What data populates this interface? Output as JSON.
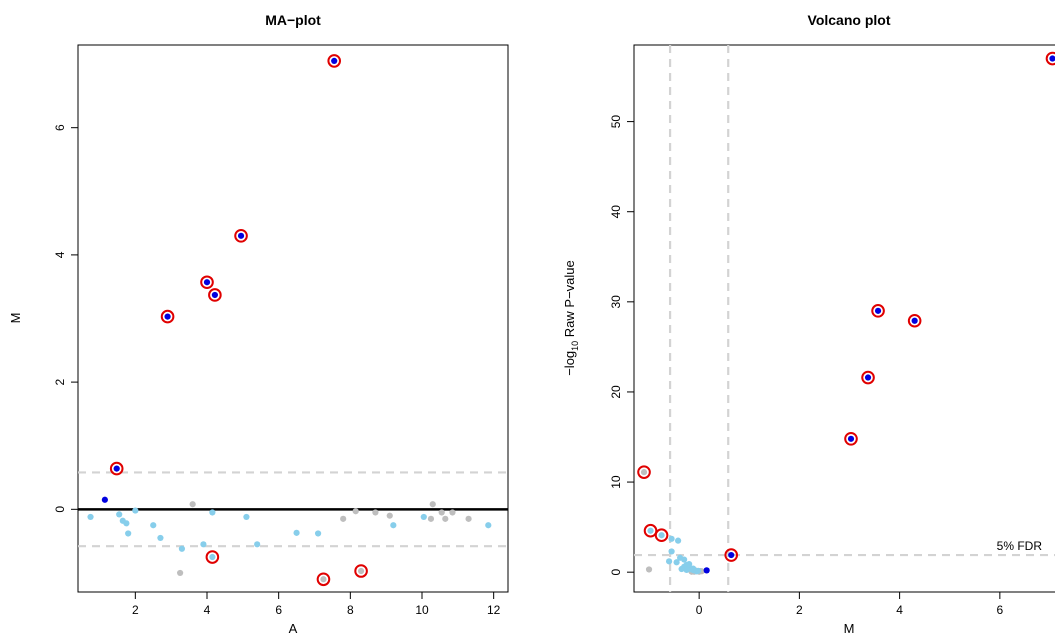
{
  "chart_data": [
    {
      "type": "scatter",
      "title": "MA−plot",
      "xlabel": "A",
      "ylabel": "M",
      "xlim": [
        0.4,
        12.4
      ],
      "ylim": [
        -1.3,
        7.3
      ],
      "xticks": [
        "2",
        "4",
        "6",
        "8",
        "10",
        "12"
      ],
      "yticks": [
        "0",
        "2",
        "4",
        "6"
      ],
      "reference_lines": {
        "solid_h": 0,
        "dashed_h": [
          0.58,
          -0.58
        ]
      },
      "colors": {
        "significant": "#0000e0",
        "highlight_ring": "#e00000",
        "light": "#87ceeb",
        "grey": "#bebebe"
      },
      "series": [
        {
          "group": "significant_circled",
          "points": [
            [
              7.55,
              7.05
            ],
            [
              4.95,
              4.3
            ],
            [
              4.0,
              3.57
            ],
            [
              4.22,
              3.37
            ],
            [
              2.9,
              3.03
            ],
            [
              1.48,
              0.64
            ]
          ]
        },
        {
          "group": "significant",
          "points": [
            [
              1.15,
              0.15
            ]
          ]
        },
        {
          "group": "light_circled",
          "points": [
            [
              4.15,
              -0.75
            ]
          ]
        },
        {
          "group": "grey_circled",
          "points": [
            [
              7.25,
              -1.1
            ],
            [
              8.3,
              -0.97
            ]
          ]
        },
        {
          "group": "light",
          "points": [
            [
              0.75,
              -0.12
            ],
            [
              1.55,
              -0.08
            ],
            [
              1.65,
              -0.18
            ],
            [
              1.75,
              -0.22
            ],
            [
              1.8,
              -0.38
            ],
            [
              2.0,
              -0.02
            ],
            [
              2.5,
              -0.25
            ],
            [
              2.7,
              -0.45
            ],
            [
              3.3,
              -0.62
            ],
            [
              3.9,
              -0.55
            ],
            [
              4.15,
              -0.05
            ],
            [
              5.1,
              -0.12
            ],
            [
              5.4,
              -0.55
            ],
            [
              6.5,
              -0.37
            ],
            [
              7.1,
              -0.38
            ],
            [
              9.2,
              -0.25
            ],
            [
              10.05,
              -0.12
            ],
            [
              11.85,
              -0.25
            ]
          ]
        },
        {
          "group": "grey",
          "points": [
            [
              3.25,
              -1.0
            ],
            [
              3.6,
              0.08
            ],
            [
              7.8,
              -0.15
            ],
            [
              8.15,
              -0.03
            ],
            [
              8.7,
              -0.05
            ],
            [
              9.1,
              -0.1
            ],
            [
              10.25,
              -0.15
            ],
            [
              10.3,
              0.08
            ],
            [
              10.55,
              -0.05
            ],
            [
              10.65,
              -0.15
            ],
            [
              10.85,
              -0.05
            ],
            [
              11.3,
              -0.15
            ]
          ]
        }
      ]
    },
    {
      "type": "scatter",
      "title": "Volcano plot",
      "xlabel": "M",
      "ylabel_prefix": "−log",
      "ylabel_sub": "10",
      "ylabel_rest": " Raw P−value",
      "annotation": "5% FDR",
      "xlim": [
        -1.3,
        7.3
      ],
      "ylim": [
        -2.2,
        58.5
      ],
      "xticks": [
        "0",
        "2",
        "4",
        "6"
      ],
      "yticks": [
        "0",
        "10",
        "20",
        "30",
        "40",
        "50"
      ],
      "reference_lines": {
        "dashed_v": [
          -0.58,
          0.58
        ],
        "dashed_h": 1.9
      },
      "series": [
        {
          "group": "significant_circled",
          "points": [
            [
              7.05,
              57.0
            ],
            [
              3.57,
              29.0
            ],
            [
              4.3,
              27.9
            ],
            [
              3.37,
              21.6
            ],
            [
              3.03,
              14.8
            ],
            [
              0.64,
              1.9
            ]
          ]
        },
        {
          "group": "significant",
          "points": [
            [
              0.15,
              0.2
            ]
          ]
        },
        {
          "group": "light_circled",
          "points": [
            [
              -0.75,
              4.1
            ],
            [
              -0.97,
              4.6
            ]
          ]
        },
        {
          "group": "grey_circled",
          "points": [
            [
              -1.1,
              11.1
            ]
          ]
        },
        {
          "group": "light",
          "points": [
            [
              -0.55,
              3.7
            ],
            [
              -0.42,
              3.5
            ],
            [
              -0.55,
              2.3
            ],
            [
              -0.6,
              1.2
            ],
            [
              -0.45,
              1.1
            ],
            [
              -0.38,
              1.6
            ],
            [
              -0.3,
              1.4
            ],
            [
              -0.25,
              0.8
            ],
            [
              -0.2,
              0.5
            ],
            [
              -0.15,
              0.3
            ],
            [
              -0.1,
              0.2
            ],
            [
              -0.05,
              0.1
            ],
            [
              -0.3,
              0.6
            ],
            [
              -0.2,
              0.9
            ],
            [
              -0.12,
              0.4
            ],
            [
              -0.02,
              0.15
            ],
            [
              -0.25,
              0.25
            ],
            [
              -0.35,
              0.35
            ]
          ]
        },
        {
          "group": "grey",
          "points": [
            [
              -1.0,
              0.3
            ],
            [
              -0.1,
              0.05
            ],
            [
              -0.05,
              0.1
            ],
            [
              0.0,
              0.05
            ],
            [
              -0.15,
              0.15
            ],
            [
              0.05,
              0.1
            ],
            [
              -0.08,
              0.2
            ],
            [
              -0.15,
              0.05
            ],
            [
              0.02,
              0.12
            ]
          ]
        }
      ]
    }
  ]
}
